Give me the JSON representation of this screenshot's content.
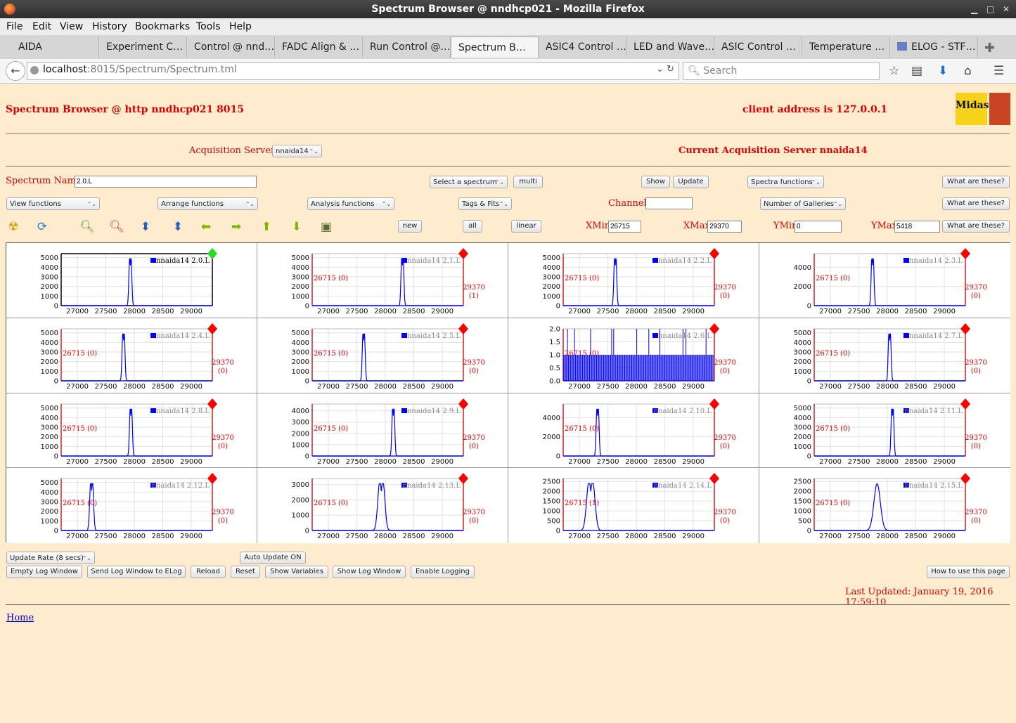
{
  "browser": {
    "window_title": "Spectrum Browser @ nndhcp021 - Mozilla Firefox",
    "menu": [
      "File",
      "Edit",
      "View",
      "History",
      "Bookmarks",
      "Tools",
      "Help"
    ],
    "tabs": [
      "AIDA",
      "Experiment C…",
      "Control @ nnd…",
      "FADC Align & …",
      "Run Control @…",
      "Spectrum B…",
      "ASIC4 Control …",
      "LED and Wave…",
      "ASIC Control …",
      "Temperature …",
      "ELOG - STF…"
    ],
    "active_tab": 5,
    "url_host": "localhost",
    "url_path": ":8015/Spectrum/Spectrum.tml",
    "search_placeholder": "Search"
  },
  "page": {
    "title": "Spectrum Browser @ http nndhcp021 8015",
    "client_address": "client address is 127.0.0.1",
    "logo_text": "Midas",
    "acq_label": "Acquisition Servers",
    "acq_value": "nnaida14",
    "current_server": "Current Acquisition Server nnaida14",
    "spectrum_name_label": "Spectrum Name:",
    "spectrum_name_value": "2.0.L",
    "select_spectrum": "Select a spectrum",
    "multi": "multi",
    "show": "Show",
    "update": "Update",
    "spectra_functions": "Spectra functions",
    "what_are_these": "What are these?",
    "view_functions": "View functions",
    "arrange_functions": "Arrange functions",
    "analysis_functions": "Analysis functions",
    "tags_fits": "Tags & Fits",
    "channel_label": "Channel:",
    "channel_value": "",
    "num_galleries": "Number of Galleries",
    "new": "new",
    "all": "all",
    "linear": "linear",
    "xmin_label": "XMin",
    "xmin_value": "26715",
    "xmax_label": "XMax",
    "xmax_value": "29370",
    "ymin_label": "YMin",
    "ymin_value": "0",
    "ymax_label": "YMax",
    "ymax_value": "5418",
    "update_rate": "Update Rate (8 secs)",
    "auto_update": "Auto Update ON",
    "buttons": [
      "Empty Log Window",
      "Send Log Window to ELog",
      "Reload",
      "Reset",
      "Show Variables",
      "Show Log Window",
      "Enable Logging"
    ],
    "how_to": "How to use this page",
    "last_updated": "Last Updated: January 19, 2016 17:59:10",
    "home": "Home"
  },
  "chart_data": {
    "type": "line",
    "x_ticks": [
      27000,
      27500,
      28000,
      28500,
      29000
    ],
    "xlim": [
      26715,
      29370
    ],
    "series_color": "#0000ff",
    "panels": [
      {
        "name": "nnaida14 2.0.L",
        "ytick": [
          0,
          1000,
          2000,
          3000,
          4000,
          5000
        ],
        "ymax": 5418,
        "peak": 27930,
        "width": 45,
        "double": true,
        "selected": true
      },
      {
        "name": "nnaida14 2.1.L",
        "ytick": [
          0,
          1000,
          2000,
          3000,
          4000,
          5000
        ],
        "ymax": 5418,
        "peak": 28300,
        "width": 45,
        "double": true,
        "left": "26715 (0)",
        "right": [
          "29370",
          "(1)"
        ]
      },
      {
        "name": "nnaida14 2.2.L",
        "ytick": [
          0,
          1000,
          2000,
          3000,
          4000,
          5000
        ],
        "ymax": 5418,
        "peak": 27630,
        "width": 45,
        "double": true,
        "left": "26715 (0)",
        "right": [
          "29370",
          "(0)"
        ]
      },
      {
        "name": "nnaida14 2.3.L",
        "ytick": [
          0,
          2000,
          4000
        ],
        "ymax": 5418,
        "peak": 27740,
        "width": 45,
        "double": true,
        "left": "26715 (0)",
        "right": [
          "29370",
          "(0)"
        ]
      },
      {
        "name": "nnaida14 2.4.L",
        "ytick": [
          0,
          1000,
          2000,
          3000,
          4000,
          5000
        ],
        "ymax": 5418,
        "peak": 27810,
        "width": 45,
        "double": true,
        "left": "26715 (0)",
        "right": [
          "29370",
          "(0)"
        ]
      },
      {
        "name": "nnaida14 2.5.L",
        "ytick": [
          0,
          1000,
          2000,
          3000,
          4000,
          5000
        ],
        "ymax": 5418,
        "peak": 27620,
        "width": 45,
        "double": true,
        "left": "26715 (0)",
        "right": [
          "29370",
          "(0)"
        ]
      },
      {
        "name": "nnaida14 2.6.L",
        "ytick": [
          0.0,
          0.5,
          1.0,
          1.5,
          2.0
        ],
        "ymax": 2,
        "noise": true,
        "left": "26715 (0)",
        "right": [
          "29370",
          "(0)"
        ]
      },
      {
        "name": "nnaida14 2.7.L",
        "ytick": [
          0,
          1000,
          2000,
          3000,
          4000,
          5000
        ],
        "ymax": 5418,
        "peak": 28040,
        "width": 45,
        "double": true,
        "left": "26715 (0)",
        "right": [
          "29370",
          "(0)"
        ]
      },
      {
        "name": "nnaida14 2.8.L",
        "ytick": [
          0,
          1000,
          2000,
          3000,
          4000,
          5000
        ],
        "ymax": 5418,
        "peak": 27940,
        "width": 45,
        "double": true,
        "left": "26715 (0)",
        "right": [
          "29370",
          "(0)"
        ]
      },
      {
        "name": "nnaida14 2.9.L",
        "ytick": [
          0,
          1000,
          2000,
          3000,
          4000
        ],
        "ymax": 4600,
        "peak": 28140,
        "width": 45,
        "double": true,
        "left": "26715 (0)",
        "right": [
          "29370",
          "(0)"
        ]
      },
      {
        "name": "nnaida14 2.10.L",
        "ytick": [
          0,
          2000,
          4000
        ],
        "ymax": 5418,
        "peak": 27320,
        "width": 45,
        "double": true,
        "left": "26715 (0)",
        "right": [
          "29370",
          "(0)"
        ]
      },
      {
        "name": "nnaida14 2.11.L",
        "ytick": [
          0,
          1000,
          2000,
          3000,
          4000,
          5000
        ],
        "ymax": 5418,
        "peak": 28090,
        "width": 45,
        "double": true,
        "left": "26715 (0)",
        "right": [
          "29370",
          "(0)"
        ]
      },
      {
        "name": "nnaida14 2.12.L",
        "ytick": [
          0,
          1000,
          2000,
          3000,
          4000,
          5000
        ],
        "ymax": 5418,
        "peak": 27250,
        "width": 60,
        "double": true,
        "left": "26715 (0)",
        "right": [
          "29370",
          "(0)"
        ]
      },
      {
        "name": "nnaida14 2.13.L",
        "ytick": [
          0,
          1000,
          2000,
          3000
        ],
        "ymax": 3400,
        "peak": 27930,
        "width": 110,
        "double": true,
        "left": "26715 (0)",
        "right": [
          "29370",
          "(0)"
        ]
      },
      {
        "name": "nnaida14 2.14.L",
        "ytick": [
          0,
          500,
          1000,
          1500,
          2000,
          2500
        ],
        "ymax": 2650,
        "peak": 27200,
        "width": 130,
        "double": true,
        "left": "26715 (1)",
        "right": [
          "29370",
          "(0)"
        ]
      },
      {
        "name": "nnaida14 2.15.L",
        "ytick": [
          0,
          500,
          1000,
          1500,
          2000,
          2500
        ],
        "ymax": 2650,
        "peak": 27820,
        "width": 130,
        "double": false,
        "left": "26715 (0)",
        "right": [
          "29370",
          "(0)"
        ]
      }
    ]
  }
}
